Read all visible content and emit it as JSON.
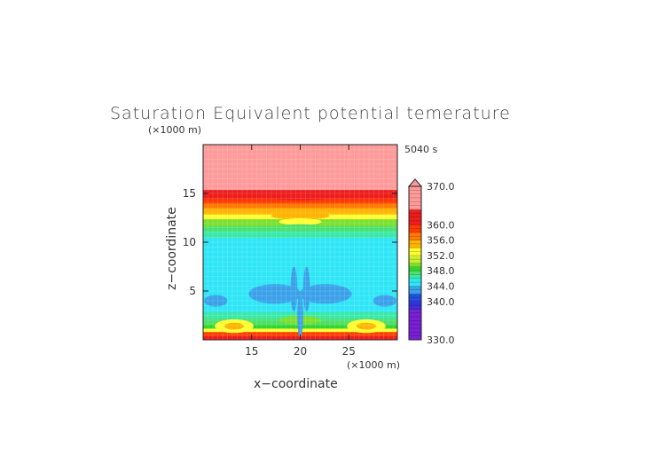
{
  "chart_data": {
    "type": "heatmap",
    "title": "Saturation Equivalent potential temerature",
    "time_label": "5040 s",
    "xlabel": "x−coordinate",
    "ylabel": "z−coordinate",
    "x_unit": "(×1000 m)",
    "y_unit": "(×1000 m)",
    "xlim": [
      10,
      30
    ],
    "ylim": [
      0,
      20
    ],
    "x_ticks": [
      15,
      20,
      25
    ],
    "y_ticks": [
      5,
      10,
      15
    ],
    "x_tick_labels": [
      "15",
      "20",
      "25"
    ],
    "y_tick_labels": [
      "5",
      "10",
      "15"
    ],
    "colorbar": {
      "min": 330.0,
      "max": 370.0,
      "extend": "max",
      "tick_values": [
        370.0,
        360.0,
        356.0,
        352.0,
        348.0,
        344.0,
        340.0,
        330.0
      ],
      "tick_labels": [
        "370.0",
        "360.0",
        "356.0",
        "352.0",
        "348.0",
        "344.0",
        "340.0",
        "330.0"
      ],
      "levels": [
        {
          "lo": 330,
          "hi": 338,
          "color": "#7a1fd6"
        },
        {
          "lo": 338,
          "hi": 340,
          "color": "#3a2fd8"
        },
        {
          "lo": 340,
          "hi": 342,
          "color": "#1f4fe0"
        },
        {
          "lo": 342,
          "hi": 344,
          "color": "#3aa0ea"
        },
        {
          "lo": 344,
          "hi": 346,
          "color": "#2fe6f6"
        },
        {
          "lo": 346,
          "hi": 347,
          "color": "#3ae8a8"
        },
        {
          "lo": 347,
          "hi": 348,
          "color": "#4ee06a"
        },
        {
          "lo": 348,
          "hi": 349,
          "color": "#2ed62e"
        },
        {
          "lo": 349,
          "hi": 350,
          "color": "#7ae02e"
        },
        {
          "lo": 350,
          "hi": 352,
          "color": "#c8f02e"
        },
        {
          "lo": 352,
          "hi": 354,
          "color": "#ffff30"
        },
        {
          "lo": 354,
          "hi": 356,
          "color": "#ffb400"
        },
        {
          "lo": 356,
          "hi": 358,
          "color": "#ff7a00"
        },
        {
          "lo": 358,
          "hi": 360,
          "color": "#ff3a00"
        },
        {
          "lo": 360,
          "hi": 364,
          "color": "#ee1c1c"
        },
        {
          "lo": 364,
          "hi": 370,
          "color": "#ff9a9a"
        }
      ]
    },
    "field": {
      "bands": [
        {
          "z": [
            0.0,
            0.4
          ],
          "value": 362
        },
        {
          "z": [
            0.4,
            0.85
          ],
          "value": 359
        },
        {
          "z": [
            0.85,
            1.2
          ],
          "value": 353
        },
        {
          "z": [
            1.2,
            1.6
          ],
          "value": 348.5
        },
        {
          "z": [
            1.6,
            2.2
          ],
          "value": 347.5
        },
        {
          "z": [
            2.2,
            2.9
          ],
          "value": 346.5
        },
        {
          "z": [
            2.9,
            3.4
          ],
          "value": 345
        },
        {
          "z": [
            3.4,
            10.5
          ],
          "value": 345
        },
        {
          "z": [
            10.5,
            11.2
          ],
          "value": 346.5
        },
        {
          "z": [
            11.2,
            11.7
          ],
          "value": 347.5
        },
        {
          "z": [
            11.7,
            12.4
          ],
          "value": 349.5
        },
        {
          "z": [
            12.4,
            12.9
          ],
          "value": 352
        },
        {
          "z": [
            12.9,
            13.5
          ],
          "value": 354.5
        },
        {
          "z": [
            13.5,
            14.0
          ],
          "value": 357
        },
        {
          "z": [
            14.0,
            14.5
          ],
          "value": 359
        },
        {
          "z": [
            14.5,
            15.4
          ],
          "value": 362
        },
        {
          "z": [
            15.4,
            20.0
          ],
          "value": 366
        }
      ],
      "features": [
        {
          "x": 13.2,
          "z": 1.4,
          "rx": 2.0,
          "rz": 0.7,
          "value": 352
        },
        {
          "x": 13.2,
          "z": 1.4,
          "rx": 1.0,
          "rz": 0.35,
          "value": 354.5
        },
        {
          "x": 26.8,
          "z": 1.4,
          "rx": 2.0,
          "rz": 0.7,
          "value": 352
        },
        {
          "x": 26.8,
          "z": 1.4,
          "rx": 1.0,
          "rz": 0.35,
          "value": 354.5
        },
        {
          "x": 20.0,
          "z": 2.0,
          "rx": 2.2,
          "rz": 0.45,
          "value": 349.5
        },
        {
          "x": 11.3,
          "z": 4.0,
          "rx": 1.2,
          "rz": 0.6,
          "value": 343
        },
        {
          "x": 28.7,
          "z": 4.0,
          "rx": 1.2,
          "rz": 0.6,
          "value": 343
        },
        {
          "x": 17.4,
          "z": 4.7,
          "rx": 2.7,
          "rz": 1.0,
          "value": 343
        },
        {
          "x": 22.6,
          "z": 4.7,
          "rx": 2.7,
          "rz": 1.0,
          "value": 343
        },
        {
          "x": 19.35,
          "z": 5.2,
          "rx": 0.35,
          "rz": 2.3,
          "value": 343
        },
        {
          "x": 20.65,
          "z": 5.2,
          "rx": 0.35,
          "rz": 2.3,
          "value": 343
        },
        {
          "x": 20.0,
          "z": 2.5,
          "rx": 0.3,
          "rz": 2.3,
          "value": 343
        },
        {
          "x": 20.0,
          "z": 12.7,
          "rx": 3.0,
          "rz": 0.4,
          "value": 354.5
        },
        {
          "x": 20.0,
          "z": 12.1,
          "rx": 2.2,
          "rz": 0.35,
          "value": 352
        },
        {
          "x": 20.0,
          "z": 11.5,
          "rx": 2.5,
          "rz": 0.35,
          "value": 347.5
        },
        {
          "x": 20.0,
          "z": 14.8,
          "rx": 4.0,
          "rz": 0.5,
          "value": 361
        }
      ]
    }
  }
}
